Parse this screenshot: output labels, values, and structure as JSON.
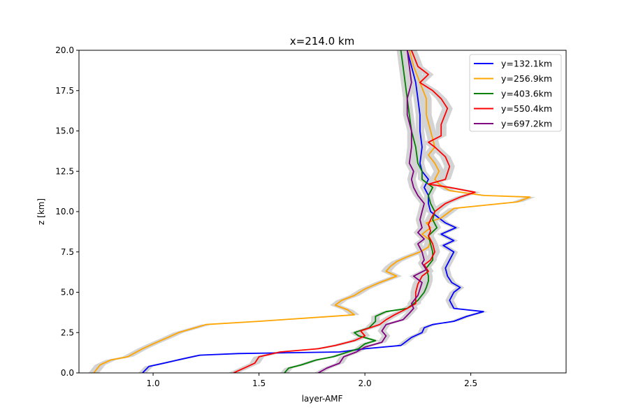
{
  "chart_data": {
    "type": "line",
    "title": "x=214.0 km",
    "xlabel": "layer-AMF",
    "ylabel": "z [km]",
    "xlim": [
      0.65,
      2.95
    ],
    "ylim": [
      0,
      20
    ],
    "xticks": [
      1.0,
      1.5,
      2.0,
      2.5
    ],
    "xtick_labels": [
      "1.0",
      "1.5",
      "2.0",
      "2.5"
    ],
    "yticks": [
      0,
      2.5,
      5,
      7.5,
      10,
      12.5,
      15,
      17.5,
      20
    ],
    "ytick_labels": [
      "0.0",
      "2.5",
      "5.0",
      "7.5",
      "10.0",
      "12.5",
      "15.0",
      "17.5",
      "20.0"
    ],
    "grid": false,
    "legend_position": "top-right",
    "uncertainty_band_color": "#d3d3d3",
    "series": [
      {
        "name": "y=132.1km",
        "color": "#0000ff",
        "points": [
          [
            0.95,
            0
          ],
          [
            0.98,
            0.4
          ],
          [
            1.05,
            0.6
          ],
          [
            1.15,
            0.9
          ],
          [
            1.22,
            1.1
          ],
          [
            1.4,
            1.2
          ],
          [
            1.88,
            1.3
          ],
          [
            2.0,
            1.5
          ],
          [
            2.17,
            1.7
          ],
          [
            2.2,
            2.0
          ],
          [
            2.22,
            2.2
          ],
          [
            2.27,
            2.5
          ],
          [
            2.28,
            2.8
          ],
          [
            2.32,
            3.0
          ],
          [
            2.42,
            3.2
          ],
          [
            2.48,
            3.5
          ],
          [
            2.56,
            3.8
          ],
          [
            2.42,
            4.0
          ],
          [
            2.4,
            4.5
          ],
          [
            2.42,
            5.0
          ],
          [
            2.45,
            5.3
          ],
          [
            2.41,
            5.6
          ],
          [
            2.39,
            6.0
          ],
          [
            2.38,
            6.5
          ],
          [
            2.4,
            7.0
          ],
          [
            2.42,
            7.5
          ],
          [
            2.37,
            7.9
          ],
          [
            2.42,
            8.2
          ],
          [
            2.36,
            8.6
          ],
          [
            2.43,
            9.0
          ],
          [
            2.38,
            9.3
          ],
          [
            2.34,
            9.7
          ],
          [
            2.31,
            10.0
          ],
          [
            2.3,
            10.5
          ],
          [
            2.3,
            11.0
          ],
          [
            2.28,
            11.5
          ],
          [
            2.3,
            12.0
          ],
          [
            2.27,
            12.5
          ],
          [
            2.26,
            13.0
          ],
          [
            2.27,
            14.0
          ],
          [
            2.26,
            15.0
          ],
          [
            2.26,
            16.0
          ],
          [
            2.25,
            17.0
          ],
          [
            2.24,
            18.0
          ],
          [
            2.22,
            19.0
          ],
          [
            2.2,
            20.0
          ]
        ],
        "band": 0.02
      },
      {
        "name": "y=256.9km",
        "color": "#ffa500",
        "points": [
          [
            0.72,
            0
          ],
          [
            0.75,
            0.5
          ],
          [
            0.8,
            0.8
          ],
          [
            0.88,
            1.0
          ],
          [
            0.95,
            1.5
          ],
          [
            1.0,
            1.8
          ],
          [
            1.07,
            2.2
          ],
          [
            1.12,
            2.5
          ],
          [
            1.2,
            2.8
          ],
          [
            1.25,
            3.0
          ],
          [
            1.5,
            3.2
          ],
          [
            1.95,
            3.6
          ],
          [
            1.92,
            3.9
          ],
          [
            1.86,
            4.2
          ],
          [
            1.89,
            4.5
          ],
          [
            1.95,
            4.8
          ],
          [
            2.0,
            5.2
          ],
          [
            2.07,
            5.6
          ],
          [
            2.15,
            6.0
          ],
          [
            2.1,
            6.3
          ],
          [
            2.12,
            6.6
          ],
          [
            2.15,
            6.9
          ],
          [
            2.2,
            7.2
          ],
          [
            2.26,
            7.5
          ],
          [
            2.3,
            7.8
          ],
          [
            2.31,
            8.2
          ],
          [
            2.27,
            8.6
          ],
          [
            2.31,
            9.0
          ],
          [
            2.29,
            9.3
          ],
          [
            2.36,
            9.6
          ],
          [
            2.42,
            10.2
          ],
          [
            2.72,
            10.6
          ],
          [
            2.78,
            10.9
          ],
          [
            2.56,
            11.0
          ],
          [
            2.4,
            11.3
          ],
          [
            2.35,
            11.7
          ],
          [
            2.33,
            12.0
          ],
          [
            2.35,
            12.5
          ],
          [
            2.33,
            13.0
          ],
          [
            2.3,
            13.5
          ],
          [
            2.33,
            14.0
          ],
          [
            2.31,
            15.0
          ],
          [
            2.29,
            16.0
          ],
          [
            2.29,
            17.0
          ],
          [
            2.26,
            18.0
          ],
          [
            2.23,
            19.0
          ],
          [
            2.21,
            20.0
          ]
        ],
        "band": 0.025
      },
      {
        "name": "y=403.6km",
        "color": "#008000",
        "points": [
          [
            1.62,
            0
          ],
          [
            1.64,
            0.3
          ],
          [
            1.7,
            0.5
          ],
          [
            1.77,
            0.8
          ],
          [
            1.85,
            1.0
          ],
          [
            1.92,
            1.3
          ],
          [
            1.97,
            1.5
          ],
          [
            2.0,
            1.8
          ],
          [
            2.05,
            2.0
          ],
          [
            1.97,
            2.3
          ],
          [
            1.95,
            2.5
          ],
          [
            2.02,
            2.8
          ],
          [
            2.05,
            3.2
          ],
          [
            2.05,
            3.5
          ],
          [
            2.1,
            3.8
          ],
          [
            2.2,
            4.0
          ],
          [
            2.25,
            4.5
          ],
          [
            2.28,
            5.0
          ],
          [
            2.29,
            5.3
          ],
          [
            2.3,
            5.7
          ],
          [
            2.3,
            6.0
          ],
          [
            2.29,
            6.5
          ],
          [
            2.32,
            7.0
          ],
          [
            2.32,
            7.5
          ],
          [
            2.31,
            8.0
          ],
          [
            2.3,
            8.5
          ],
          [
            2.34,
            9.0
          ],
          [
            2.32,
            9.5
          ],
          [
            2.33,
            10.0
          ],
          [
            2.31,
            10.5
          ],
          [
            2.3,
            11.0
          ],
          [
            2.32,
            11.5
          ],
          [
            2.27,
            12.0
          ],
          [
            2.27,
            12.5
          ],
          [
            2.25,
            13.0
          ],
          [
            2.24,
            14.0
          ],
          [
            2.22,
            15.0
          ],
          [
            2.21,
            16.0
          ],
          [
            2.2,
            17.0
          ],
          [
            2.19,
            18.0
          ],
          [
            2.18,
            19.0
          ],
          [
            2.17,
            20.0
          ]
        ],
        "band": 0.02
      },
      {
        "name": "y=550.4km",
        "color": "#ff0000",
        "points": [
          [
            1.38,
            0
          ],
          [
            1.43,
            0.3
          ],
          [
            1.48,
            0.6
          ],
          [
            1.5,
            1.0
          ],
          [
            1.6,
            1.3
          ],
          [
            1.78,
            1.5
          ],
          [
            1.86,
            1.7
          ],
          [
            1.95,
            2.0
          ],
          [
            2.0,
            2.3
          ],
          [
            1.98,
            2.6
          ],
          [
            2.07,
            3.0
          ],
          [
            2.1,
            3.3
          ],
          [
            2.14,
            3.6
          ],
          [
            2.2,
            4.0
          ],
          [
            2.24,
            4.3
          ],
          [
            2.24,
            4.6
          ],
          [
            2.24,
            5.0
          ],
          [
            2.25,
            5.5
          ],
          [
            2.27,
            6.0
          ],
          [
            2.3,
            6.3
          ],
          [
            2.28,
            6.7
          ],
          [
            2.31,
            7.0
          ],
          [
            2.33,
            7.5
          ],
          [
            2.32,
            8.0
          ],
          [
            2.3,
            8.5
          ],
          [
            2.31,
            8.8
          ],
          [
            2.3,
            9.2
          ],
          [
            2.31,
            9.5
          ],
          [
            2.33,
            10.0
          ],
          [
            2.38,
            10.5
          ],
          [
            2.45,
            10.9
          ],
          [
            2.52,
            11.2
          ],
          [
            2.4,
            11.5
          ],
          [
            2.3,
            11.7
          ],
          [
            2.38,
            12.0
          ],
          [
            2.4,
            12.8
          ],
          [
            2.38,
            13.4
          ],
          [
            2.33,
            14.0
          ],
          [
            2.3,
            14.3
          ],
          [
            2.36,
            14.7
          ],
          [
            2.36,
            15.4
          ],
          [
            2.39,
            16.4
          ],
          [
            2.36,
            17.0
          ],
          [
            2.32,
            17.5
          ],
          [
            2.26,
            18.0
          ],
          [
            2.3,
            18.5
          ],
          [
            2.25,
            19.0
          ],
          [
            2.22,
            20.0
          ]
        ],
        "band": 0.025
      },
      {
        "name": "y=697.2km",
        "color": "#800080",
        "points": [
          [
            1.78,
            0
          ],
          [
            1.82,
            0.3
          ],
          [
            1.88,
            0.6
          ],
          [
            1.9,
            1.0
          ],
          [
            1.96,
            1.3
          ],
          [
            2.0,
            1.6
          ],
          [
            2.08,
            1.9
          ],
          [
            2.1,
            2.3
          ],
          [
            2.08,
            2.6
          ],
          [
            2.1,
            3.0
          ],
          [
            2.18,
            3.3
          ],
          [
            2.21,
            3.7
          ],
          [
            2.23,
            4.0
          ],
          [
            2.22,
            4.3
          ],
          [
            2.25,
            4.8
          ],
          [
            2.26,
            5.2
          ],
          [
            2.27,
            5.6
          ],
          [
            2.23,
            6.0
          ],
          [
            2.29,
            6.4
          ],
          [
            2.27,
            6.8
          ],
          [
            2.28,
            7.0
          ],
          [
            2.27,
            7.5
          ],
          [
            2.25,
            8.0
          ],
          [
            2.28,
            8.3
          ],
          [
            2.25,
            8.7
          ],
          [
            2.27,
            9.0
          ],
          [
            2.26,
            9.5
          ],
          [
            2.27,
            10.0
          ],
          [
            2.28,
            10.5
          ],
          [
            2.25,
            11.0
          ],
          [
            2.23,
            11.5
          ],
          [
            2.22,
            12.0
          ],
          [
            2.23,
            12.5
          ],
          [
            2.21,
            13.0
          ],
          [
            2.22,
            14.0
          ],
          [
            2.22,
            15.0
          ],
          [
            2.2,
            16.0
          ],
          [
            2.2,
            17.0
          ],
          [
            2.22,
            18.0
          ],
          [
            2.21,
            19.0
          ],
          [
            2.2,
            20.0
          ]
        ],
        "band": 0.02
      }
    ]
  }
}
